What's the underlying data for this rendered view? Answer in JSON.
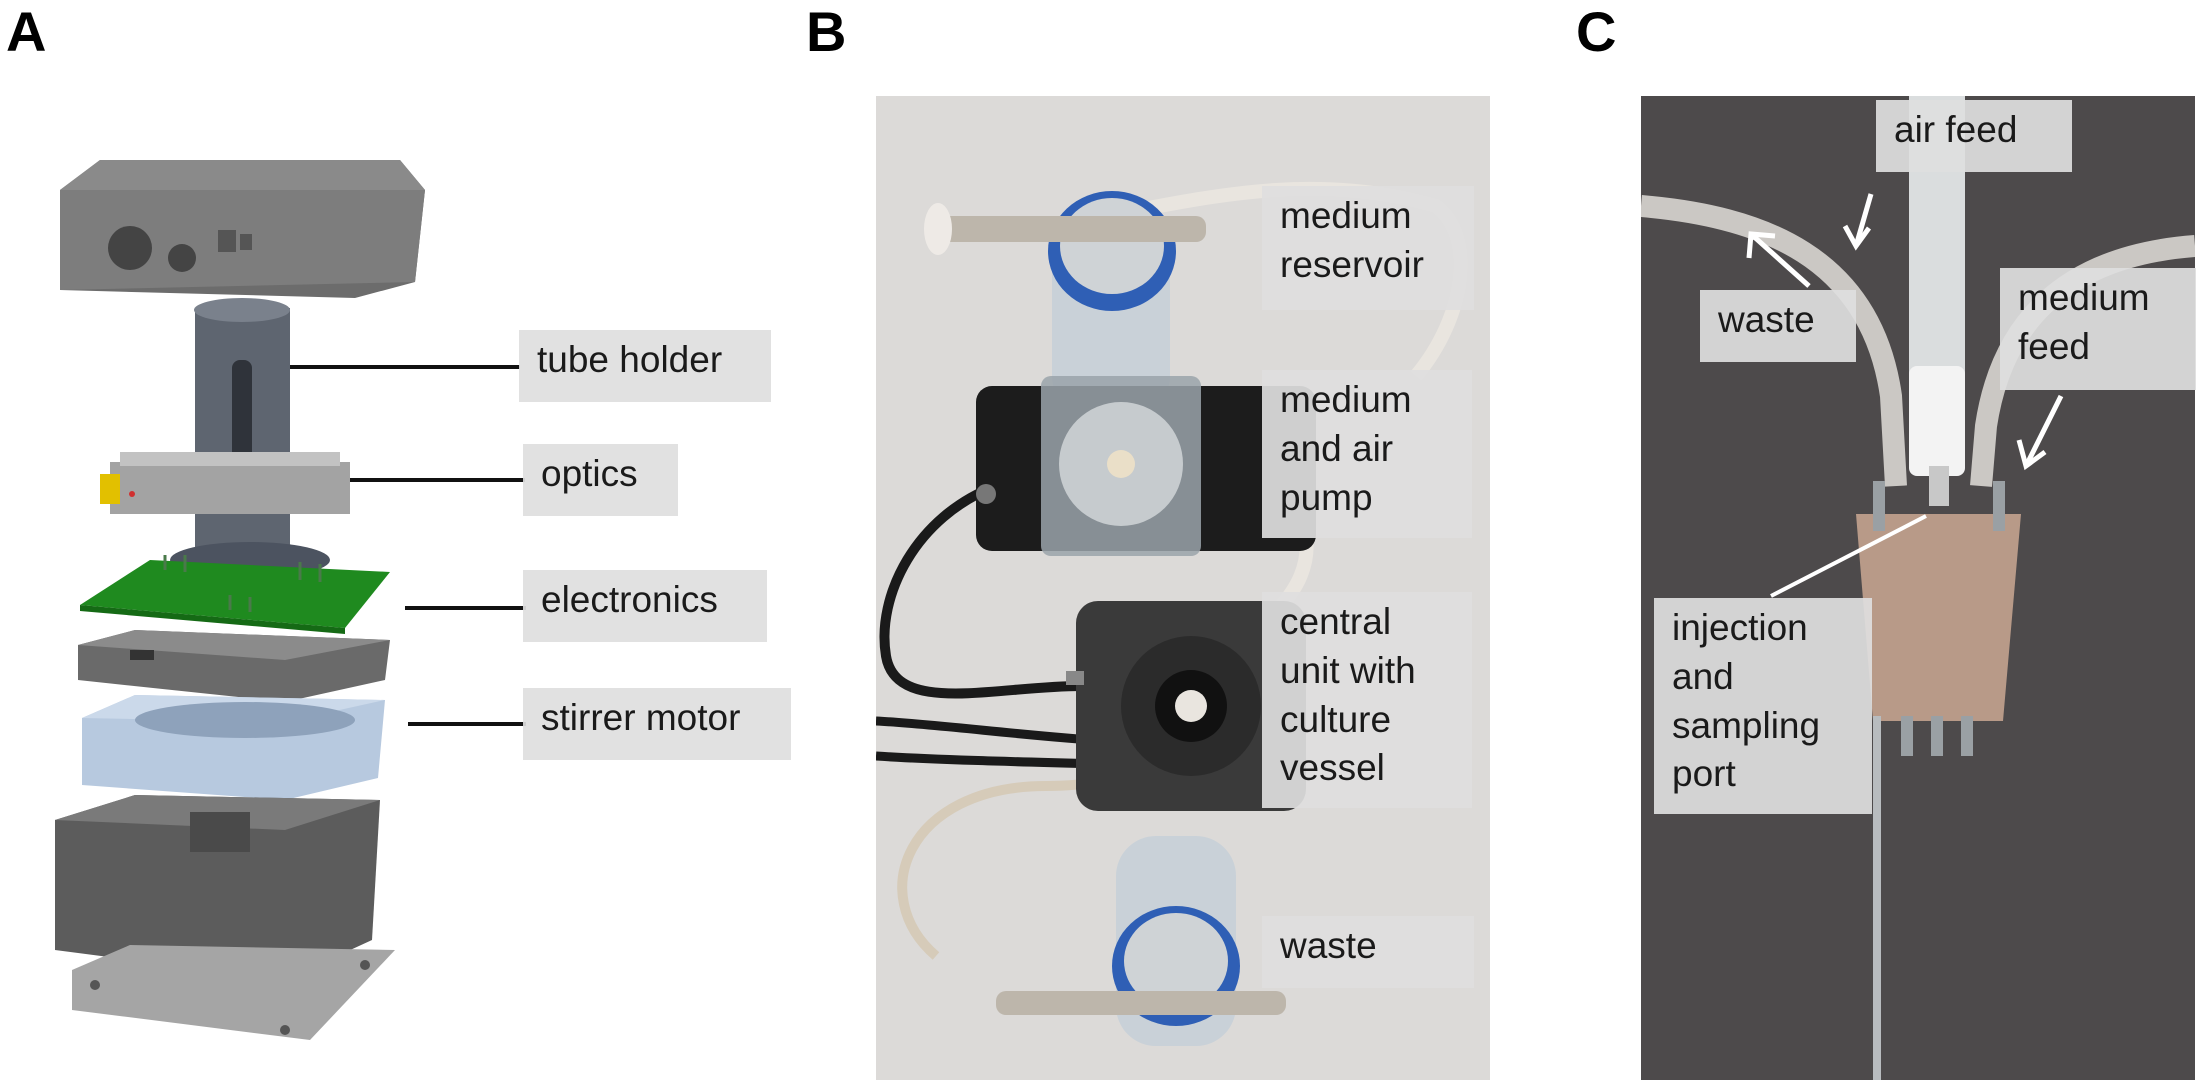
{
  "panels": {
    "a": {
      "letter": "A",
      "labels": {
        "tube_holder": "tube holder",
        "optics": "optics",
        "electronics": "electronics",
        "stirrer_motor": "stirrer motor"
      }
    },
    "b": {
      "letter": "B",
      "labels": {
        "medium_reservoir": "medium reservoir",
        "pump": "medium and air pump",
        "central_unit": "central unit with culture vessel",
        "waste": "waste"
      }
    },
    "c": {
      "letter": "C",
      "labels": {
        "air_feed": "air feed",
        "waste": "waste",
        "medium_feed": "medium feed",
        "injection": "injection and sampling port"
      }
    }
  },
  "colors": {
    "device_gray": "#6f6f6f",
    "pcb_green": "#1f8a1f",
    "motor_blue": "#b7c9df",
    "bottle_cap_blue": "#2f5fb5",
    "photo_bg_b": "#dcdad8",
    "photo_bg_c": "#4d4a4b",
    "stopper": "#b89a88"
  }
}
